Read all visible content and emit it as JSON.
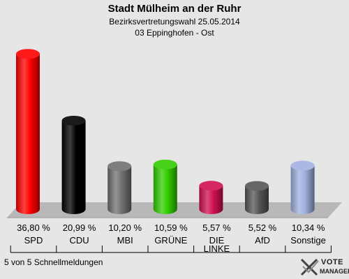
{
  "header": {
    "title": "Stadt Mülheim an der Ruhr",
    "subtitle": "Bezirksvertretungswahl 25.05.2014",
    "district": "03 Eppinghofen - Ost"
  },
  "footer": {
    "reports": "5 von 5 Schnellmeldungen"
  },
  "logo": {
    "line1": "VOTE",
    "line2": "MANAGER"
  },
  "chart_data": {
    "type": "bar",
    "title": "Stadt Mülheim an der Ruhr",
    "subtitle": "Bezirksvertretungswahl 25.05.2014",
    "categories": [
      "SPD",
      "CDU",
      "MBI",
      "GRÜNE",
      "DIE LINKE",
      "AfD",
      "Sonstige"
    ],
    "values": [
      36.8,
      20.99,
      10.2,
      10.59,
      5.57,
      5.52,
      10.34
    ],
    "value_labels": [
      "36,80 %",
      "20,99 %",
      "10,20 %",
      "10,59 %",
      "5,57 %",
      "5,52 %",
      "10,34 %"
    ],
    "colors": [
      "#ff0000",
      "#000000",
      "#707070",
      "#33cc00",
      "#d01050",
      "#555555",
      "#a0b0e0"
    ],
    "ylim": [
      0,
      38
    ],
    "grid": false,
    "legend": "none"
  }
}
